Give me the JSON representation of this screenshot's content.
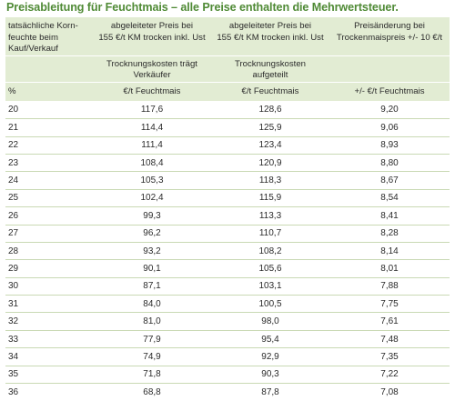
{
  "title": "Preisableitung für Feuchtmais – alle Preise enthalten die Mehrwertsteuer.",
  "header": {
    "row1": [
      [
        "tatsächliche Korn-",
        "feuchte beim",
        "Kauf/Verkauf"
      ],
      [
        "abgeleiteter Preis bei",
        "155 €/t KM trocken inkl. Ust"
      ],
      [
        "abgeleiteter Preis bei",
        "155 €/t KM trocken inkl. Ust"
      ],
      [
        "Preisänderung bei",
        "Trockenmaispreis +/- 10 €/t"
      ]
    ],
    "row2": [
      [],
      [
        "Trocknungskosten trägt",
        "Verkäufer"
      ],
      [
        "Trocknungskosten",
        "aufgeteilt"
      ],
      []
    ],
    "row3": [
      "%",
      "€/t Feuchtmais",
      "€/t Feuchtmais",
      "+/- €/t Feuchtmais"
    ]
  },
  "rows": [
    [
      "20",
      "117,6",
      "128,6",
      "9,20"
    ],
    [
      "21",
      "114,4",
      "125,9",
      "9,06"
    ],
    [
      "22",
      "111,4",
      "123,4",
      "8,93"
    ],
    [
      "23",
      "108,4",
      "120,9",
      "8,80"
    ],
    [
      "24",
      "105,3",
      "118,3",
      "8,67"
    ],
    [
      "25",
      "102,4",
      "115,9",
      "8,54"
    ],
    [
      "26",
      "99,3",
      "113,3",
      "8,41"
    ],
    [
      "27",
      "96,2",
      "110,7",
      "8,28"
    ],
    [
      "28",
      "93,2",
      "108,2",
      "8,14"
    ],
    [
      "29",
      "90,1",
      "105,6",
      "8,01"
    ],
    [
      "30",
      "87,1",
      "103,1",
      "7,88"
    ],
    [
      "31",
      "84,0",
      "100,5",
      "7,75"
    ],
    [
      "32",
      "81,0",
      "98,0",
      "7,61"
    ],
    [
      "33",
      "77,9",
      "95,4",
      "7,48"
    ],
    [
      "34",
      "74,9",
      "92,9",
      "7,35"
    ],
    [
      "35",
      "71,8",
      "90,3",
      "7,22"
    ],
    [
      "36",
      "68,8",
      "87,8",
      "7,08"
    ]
  ],
  "colors": {
    "title": "#4f8a35",
    "header_bg": "#e2ecd3",
    "row_divider": "#c9d9b4",
    "text": "#2b2b2b"
  }
}
